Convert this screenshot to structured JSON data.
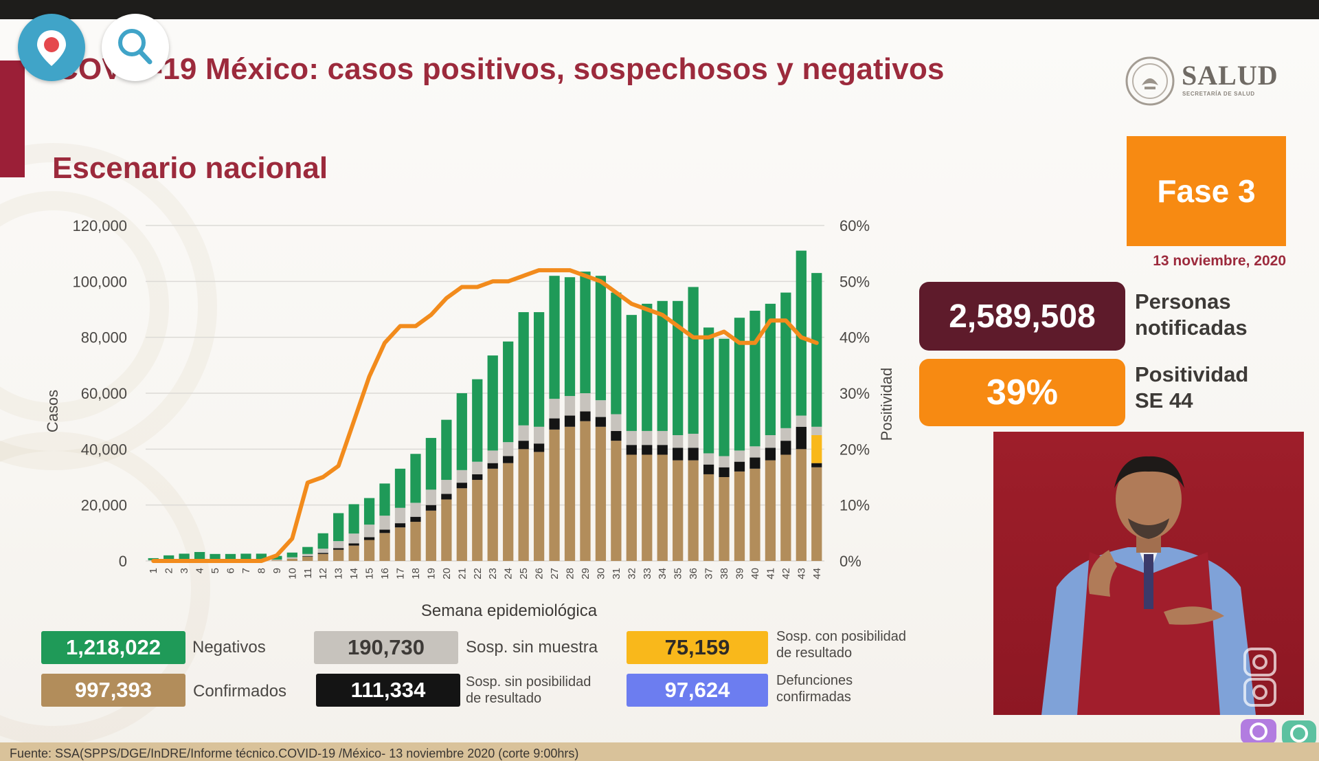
{
  "title": "COVID-19 México: casos positivos, sospechosos y negativos",
  "subtitle": "Escenario nacional",
  "logo": {
    "name": "SALUD",
    "sub": "SECRETARÍA DE SALUD"
  },
  "phase": "Fase 3",
  "date": "13 noviembre, 2020",
  "stats": {
    "notified_value": "2,589,508",
    "notified_label": "Personas notificadas",
    "positivity_value": "39%",
    "positivity_label": "Positividad SE 44"
  },
  "legend": {
    "negatives_value": "1,218,022",
    "negatives_label": "Negativos",
    "confirmed_value": "997,393",
    "confirmed_label": "Confirmados",
    "no_sample_value": "190,730",
    "no_sample_label": "Sosp. sin muestra",
    "no_result_value": "111,334",
    "no_result_label_1": "Sosp. sin posibilidad",
    "no_result_label_2": "de resultado",
    "possible_value": "75,159",
    "possible_label_1": "Sosp. con posibilidad",
    "possible_label_2": "de resultado",
    "deaths_value": "97,624",
    "deaths_label_1": "Defunciones",
    "deaths_label_2": "confirmadas"
  },
  "footer": "Fuente: SSA(SPPS/DGE/InDRE/Informe técnico.COVID-19 /México- 13 noviembre 2020 (corte 9:00hrs)",
  "colors": {
    "negatives": "#1f9a58",
    "confirmed": "#b28d5b",
    "no_sample": "#c7c3bd",
    "no_result": "#141414",
    "possible": "#f9b81b",
    "deaths": "#6c7df0",
    "positivity": "#f28b1c"
  },
  "chart_data": {
    "type": "bar",
    "stacked": true,
    "xlabel": "Semana epidemiológica",
    "ylabel": "Casos",
    "y2label": "Positividad",
    "ylim": [
      0,
      120000
    ],
    "y2lim": [
      0,
      60
    ],
    "yticks": [
      "0",
      "20,000",
      "40,000",
      "60,000",
      "80,000",
      "100,000",
      "120,000"
    ],
    "y2ticks": [
      "0%",
      "10%",
      "20%",
      "30%",
      "40%",
      "50%",
      "60%"
    ],
    "categories": [
      "1",
      "2",
      "3",
      "4",
      "5",
      "6",
      "7",
      "8",
      "9",
      "10",
      "11",
      "12",
      "13",
      "14",
      "15",
      "16",
      "17",
      "18",
      "19",
      "20",
      "21",
      "22",
      "23",
      "24",
      "25",
      "26",
      "27",
      "28",
      "29",
      "30",
      "31",
      "32",
      "33",
      "34",
      "35",
      "36",
      "37",
      "38",
      "39",
      "40",
      "41",
      "42",
      "43",
      "44"
    ],
    "series": [
      {
        "name": "Confirmados",
        "values": [
          0,
          0,
          0,
          0,
          0,
          0,
          0,
          0,
          200,
          800,
          1500,
          2500,
          4000,
          5500,
          7500,
          10000,
          12000,
          14000,
          18000,
          22000,
          26000,
          29000,
          33000,
          35000,
          40000,
          39000,
          47000,
          48000,
          50000,
          48000,
          43000,
          38000,
          38000,
          38000,
          36000,
          36000,
          31000,
          30000,
          32000,
          33000,
          36000,
          38000,
          40000,
          33500
        ]
      },
      {
        "name": "Sosp. sin posibilidad de resultado",
        "values": [
          0,
          0,
          0,
          0,
          0,
          0,
          0,
          0,
          0,
          0,
          200,
          400,
          600,
          800,
          1000,
          1200,
          1500,
          1800,
          2000,
          2000,
          2000,
          2000,
          2000,
          2500,
          3000,
          3000,
          4000,
          4000,
          3500,
          3500,
          3500,
          3500,
          3500,
          3500,
          4500,
          4500,
          3500,
          3500,
          3500,
          4000,
          4500,
          5000,
          8000,
          1500
        ]
      },
      {
        "name": "Sosp. con posibilidad de resultado",
        "values": [
          0,
          0,
          0,
          0,
          0,
          0,
          0,
          0,
          0,
          0,
          0,
          0,
          0,
          0,
          0,
          0,
          0,
          0,
          0,
          0,
          0,
          0,
          0,
          0,
          0,
          0,
          0,
          0,
          0,
          0,
          0,
          0,
          0,
          0,
          0,
          0,
          0,
          0,
          0,
          0,
          0,
          0,
          0,
          10000
        ]
      },
      {
        "name": "Sosp. sin muestra",
        "values": [
          300,
          500,
          600,
          700,
          500,
          500,
          400,
          400,
          300,
          500,
          800,
          1500,
          2500,
          3500,
          4500,
          5000,
          5500,
          5000,
          5500,
          5000,
          4500,
          4500,
          4500,
          5000,
          5500,
          6000,
          7000,
          7000,
          6500,
          6000,
          6000,
          5000,
          5000,
          5000,
          4500,
          5000,
          4000,
          4000,
          4000,
          4000,
          4500,
          4500,
          4000,
          3000
        ]
      },
      {
        "name": "Negativos",
        "values": [
          700,
          1500,
          2000,
          2500,
          2000,
          2000,
          2200,
          2200,
          1300,
          1700,
          2500,
          5500,
          10000,
          10500,
          9500,
          11500,
          14000,
          17500,
          18500,
          21500,
          27500,
          29500,
          34000,
          36000,
          40500,
          41000,
          44000,
          42500,
          43500,
          44500,
          43500,
          41500,
          45500,
          46500,
          48000,
          52500,
          45000,
          42000,
          47500,
          48500,
          47000,
          48500,
          59000,
          55000
        ]
      },
      {
        "name": "Positividad",
        "axis": "y2",
        "values": [
          0,
          0,
          0,
          0,
          0,
          0,
          0,
          0,
          1,
          4,
          14,
          15,
          17,
          25,
          33,
          39,
          42,
          42,
          44,
          47,
          49,
          49,
          50,
          50,
          51,
          52,
          52,
          52,
          51,
          50,
          48,
          46,
          45,
          44,
          42,
          40,
          40,
          41,
          39,
          39,
          43,
          43,
          40,
          39
        ]
      }
    ]
  }
}
